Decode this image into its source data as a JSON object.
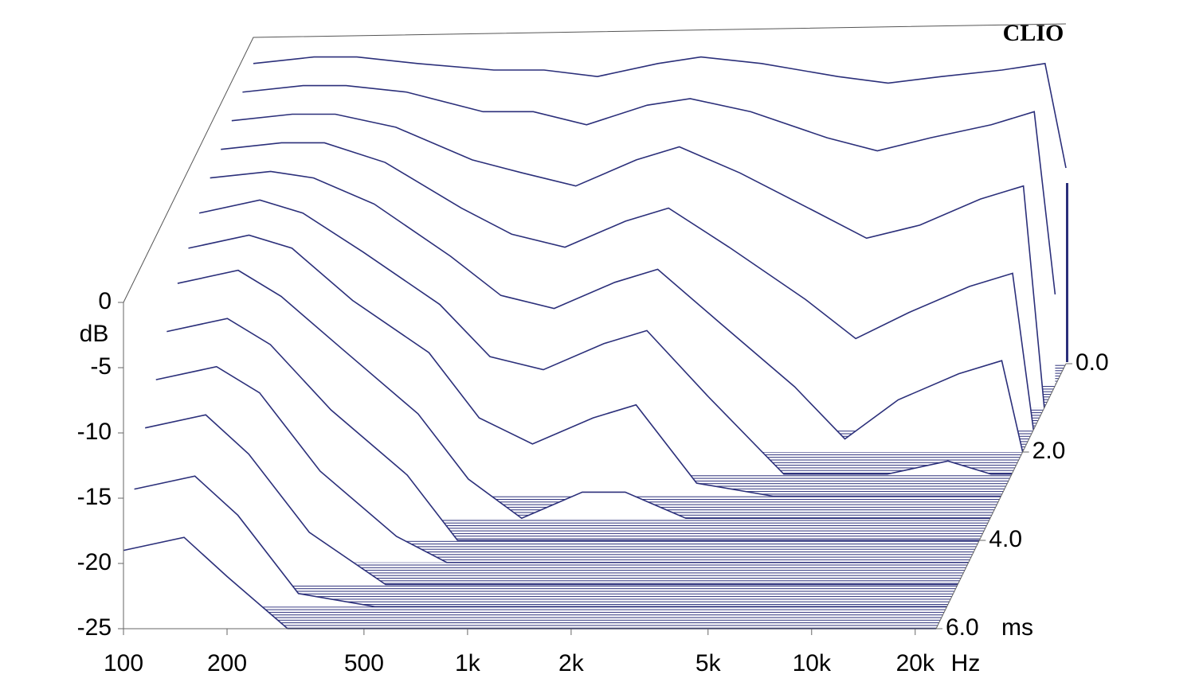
{
  "chart_data": {
    "type": "waterfall",
    "title": "CLIO",
    "color": "#2b2f7a",
    "log_x": true,
    "x": [
      100,
      150,
      200,
      300,
      500,
      700,
      1000,
      1500,
      2000,
      3000,
      5000,
      7000,
      10000,
      15000,
      20000,
      23000
    ],
    "xlim": [
      100,
      23000
    ],
    "xticks": [
      100,
      200,
      500,
      {
        "value": 1000,
        "label": "1k"
      },
      {
        "value": 2000,
        "label": "2k"
      },
      {
        "value": 5000,
        "label": "5k"
      },
      {
        "value": 10000,
        "label": "10k"
      },
      {
        "value": 20000,
        "label": "20k"
      }
    ],
    "x_unit": "Hz",
    "ylim": [
      -25,
      0
    ],
    "yticks": [
      0,
      -5,
      -10,
      -15,
      -20,
      -25
    ],
    "y_label": "dB",
    "zlim": [
      0,
      6
    ],
    "zticks": [
      {
        "value": 0,
        "label": "0.0"
      },
      {
        "value": 2,
        "label": "2.0"
      },
      {
        "value": 4,
        "label": "4.0"
      },
      {
        "value": 6,
        "label": "6.0"
      }
    ],
    "z_unit": "ms",
    "slices": [
      {
        "time": 0,
        "values": [
          -2,
          -1.5,
          -1.5,
          -2,
          -2.5,
          -2.5,
          -3,
          -2,
          -1.5,
          -2,
          -3,
          -3.5,
          -3,
          -2.5,
          -2,
          -10
        ]
      },
      {
        "time": 0.5,
        "values": [
          -2.5,
          -2,
          -2,
          -2.5,
          -4,
          -4,
          -5,
          -3.5,
          -3,
          -4,
          -6,
          -7,
          -6,
          -5,
          -4,
          -18
        ]
      },
      {
        "time": 1,
        "values": [
          -3,
          -2.5,
          -2.5,
          -3.5,
          -6,
          -7,
          -8,
          -6,
          -5,
          -7,
          -10,
          -12,
          -11,
          -9,
          -8,
          -25
        ]
      },
      {
        "time": 1.5,
        "values": [
          -3.5,
          -3,
          -3,
          -4.5,
          -8,
          -10,
          -11,
          -9,
          -8,
          -11,
          -15,
          -18,
          -16,
          -14,
          -13,
          -25
        ]
      },
      {
        "time": 2,
        "values": [
          -4,
          -3.5,
          -4,
          -6,
          -10,
          -13,
          -14,
          -12,
          -11,
          -15,
          -20,
          -24,
          -21,
          -19,
          -18,
          -25
        ]
      },
      {
        "time": 2.5,
        "values": [
          -5,
          -4,
          -5,
          -8,
          -12,
          -16,
          -17,
          -15,
          -14,
          -19,
          -25,
          -25,
          -25,
          -24,
          -25,
          -25
        ]
      },
      {
        "time": 3,
        "values": [
          -6,
          -5,
          -6,
          -10,
          -14,
          -19,
          -21,
          -19,
          -18,
          -24,
          -25,
          -25,
          -25,
          -25,
          -25,
          -25
        ]
      },
      {
        "time": 3.5,
        "values": [
          -7,
          -6,
          -8,
          -12,
          -17,
          -22,
          -25,
          -23,
          -23,
          -25,
          -25,
          -25,
          -25,
          -25,
          -25,
          -25
        ]
      },
      {
        "time": 4,
        "values": [
          -9,
          -8,
          -10,
          -15,
          -20,
          -25,
          -25,
          -25,
          -25,
          -25,
          -25,
          -25,
          -25,
          -25,
          -25,
          -25
        ]
      },
      {
        "time": 4.5,
        "values": [
          -11,
          -10,
          -12,
          -18,
          -23,
          -25,
          -25,
          -25,
          -25,
          -25,
          -25,
          -25,
          -25,
          -25,
          -25,
          -25
        ]
      },
      {
        "time": 5,
        "values": [
          -13,
          -12,
          -15,
          -21,
          -25,
          -25,
          -25,
          -25,
          -25,
          -25,
          -25,
          -25,
          -25,
          -25,
          -25,
          -25
        ]
      },
      {
        "time": 5.5,
        "values": [
          -16,
          -15,
          -18,
          -24,
          -25,
          -25,
          -25,
          -25,
          -25,
          -25,
          -25,
          -25,
          -25,
          -25,
          -25,
          -25
        ]
      },
      {
        "time": 6,
        "values": [
          -19,
          -18,
          -21,
          -25,
          -25,
          -25,
          -25,
          -25,
          -25,
          -25,
          -25,
          -25,
          -25,
          -25,
          -25,
          -25
        ]
      }
    ]
  }
}
